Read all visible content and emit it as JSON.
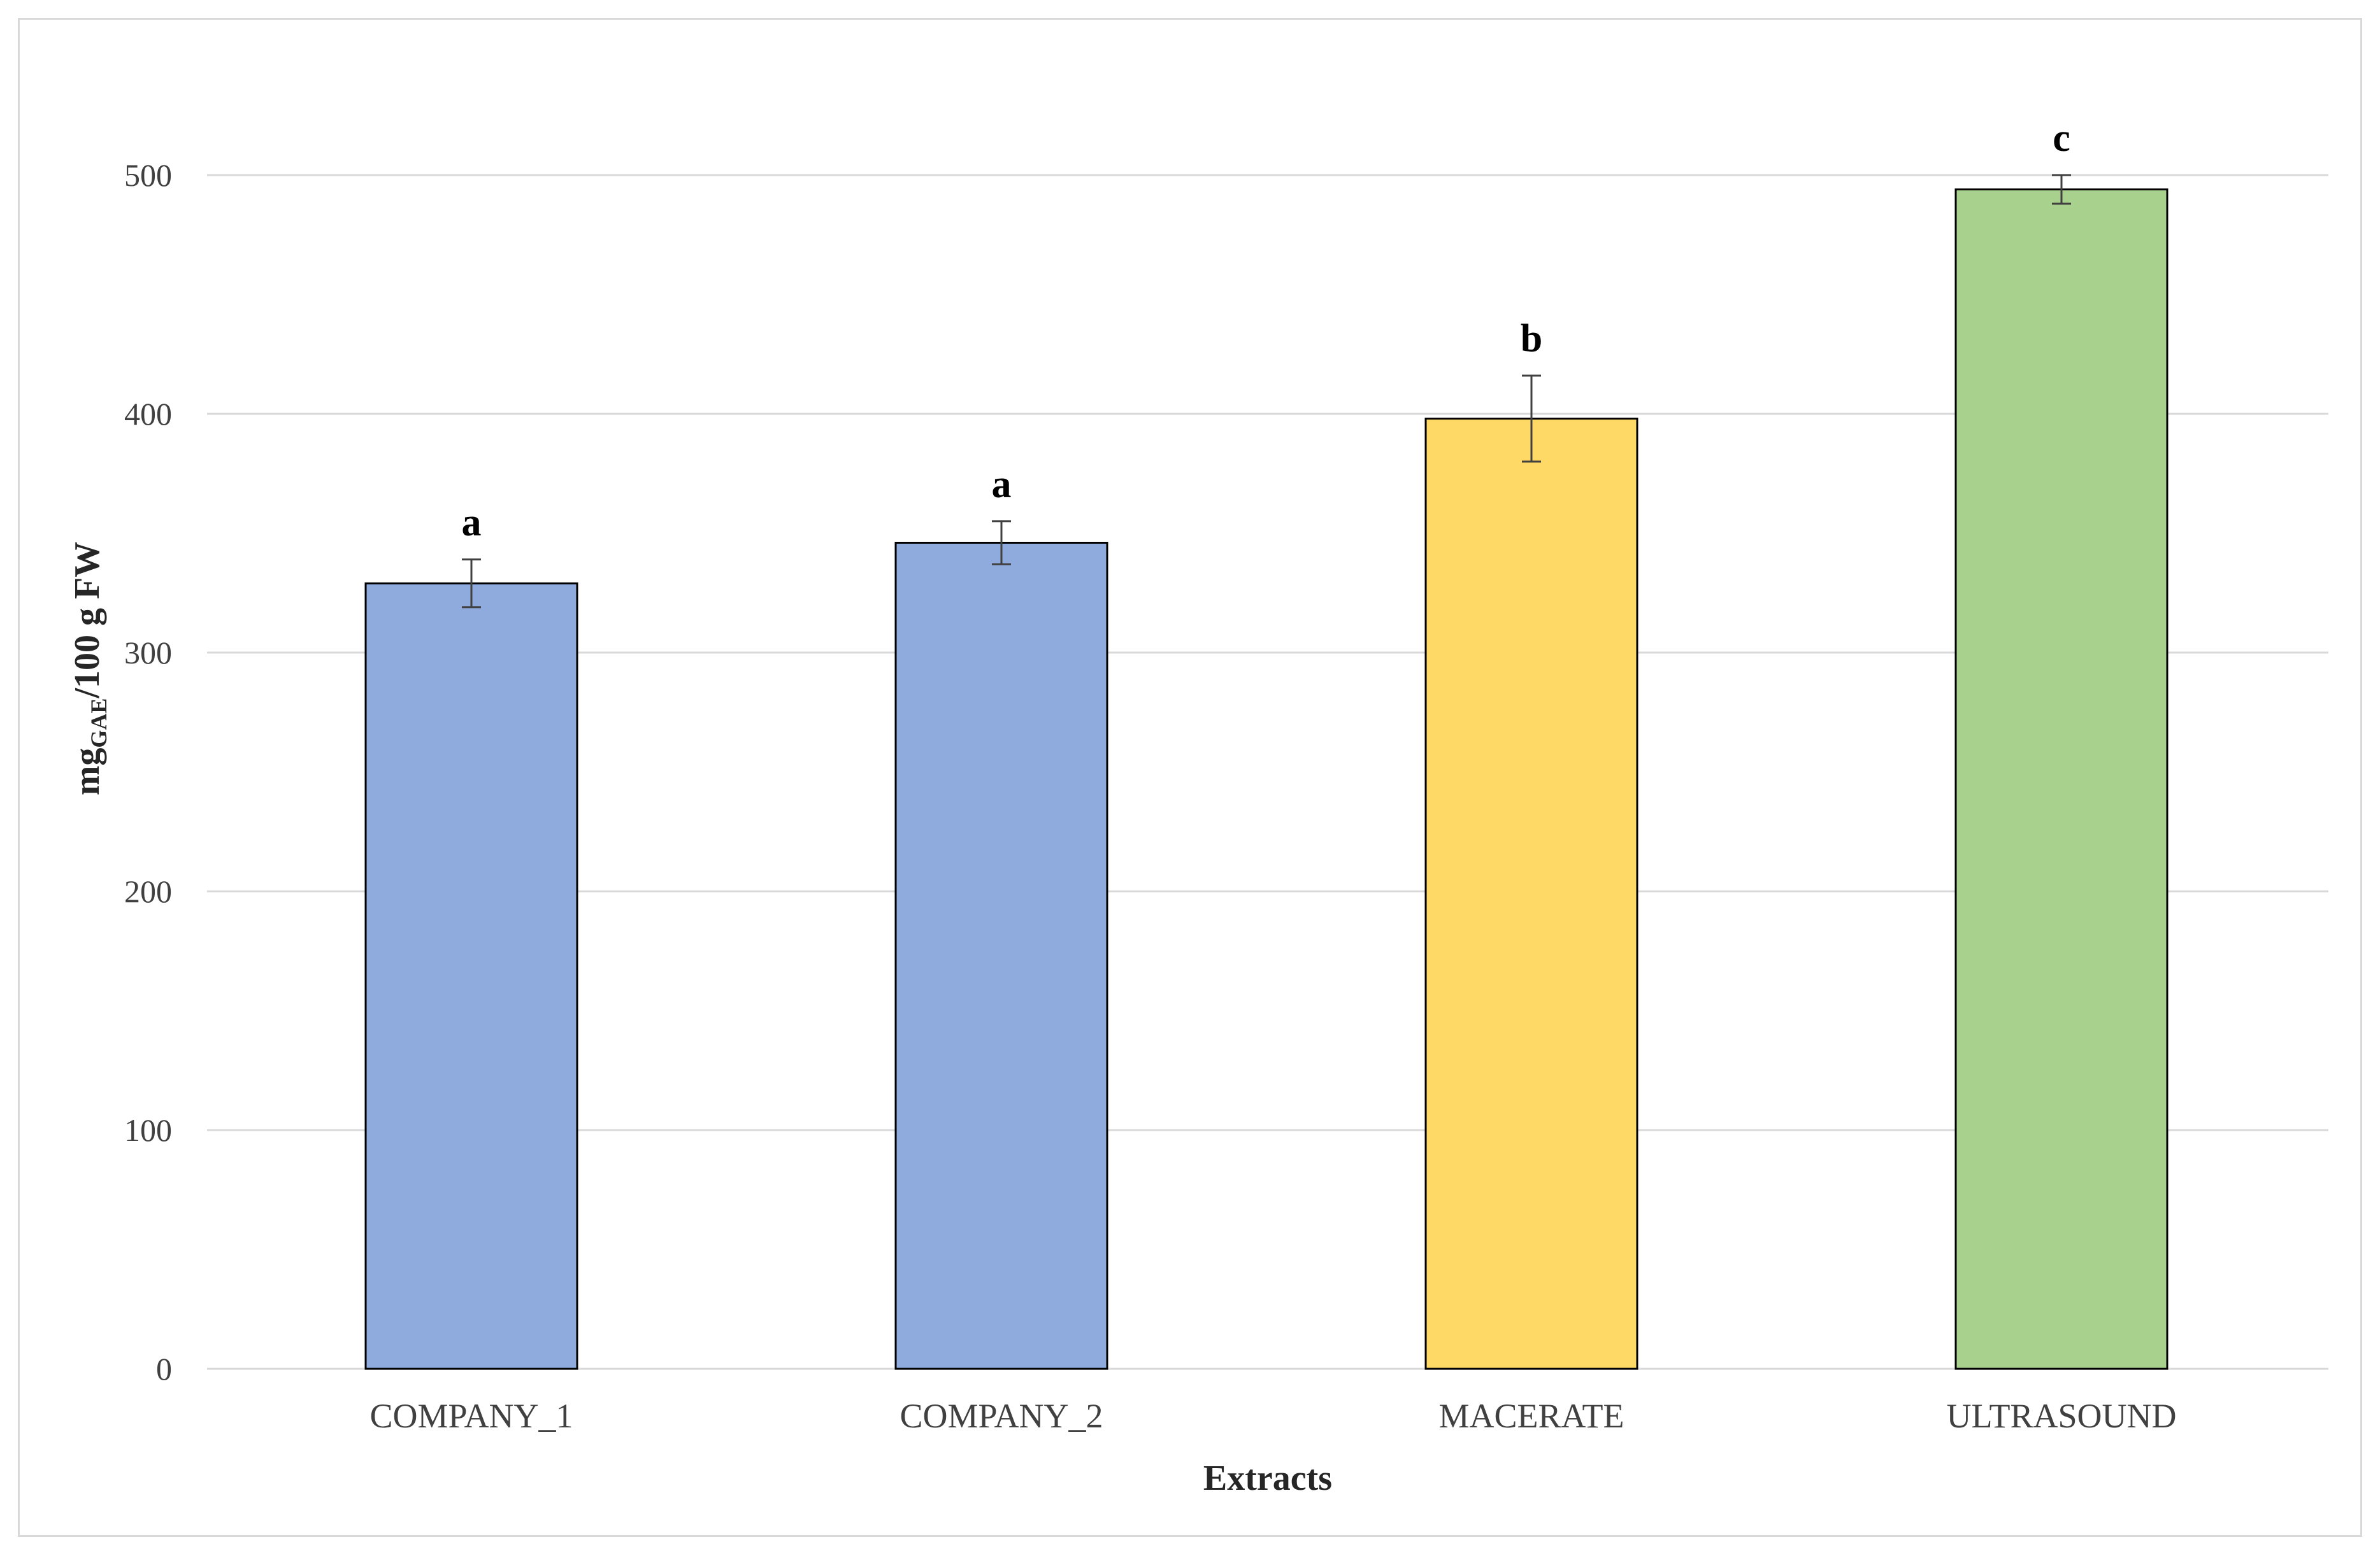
{
  "chart_data": {
    "type": "bar",
    "categories": [
      "COMPANY_1",
      "COMPANY_2",
      "MACERATE",
      "ULTRASOUND"
    ],
    "values": [
      329,
      346,
      398,
      494
    ],
    "errors": [
      10,
      9,
      18,
      6
    ],
    "significance_letters": [
      "a",
      "a",
      "b",
      "c"
    ],
    "bar_colors": [
      "#8faadc",
      "#8faadc",
      "#ffd966",
      "#a9d18e"
    ],
    "xlabel": "Extracts",
    "ylabel": {
      "prefix": "mg",
      "subscript": "GAE",
      "suffix": "/100 g FW"
    },
    "ylim": [
      0,
      540
    ],
    "yticks": [
      0,
      100,
      200,
      300,
      400,
      500
    ],
    "grid": true,
    "legend": "none"
  }
}
